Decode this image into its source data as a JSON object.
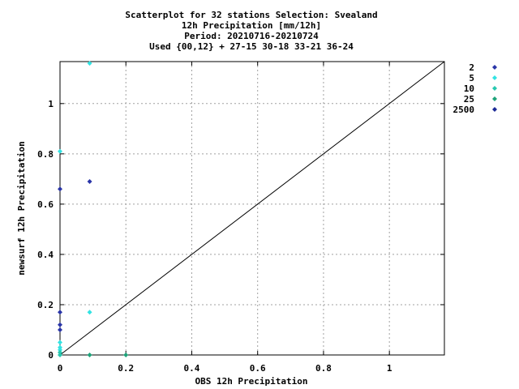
{
  "chart_data": {
    "type": "scatter",
    "title_lines": [
      "Scatterplot for   32 stations Selection: Svealand",
      "12h Precipitation [mm/12h]",
      "Period: 20210716-20210724",
      "Used {00,12} + 27-15 30-18 33-21 36-24"
    ],
    "xlabel": "OBS 12h Precipitation",
    "ylabel": "newsurf 12h Precipitation",
    "xlim": [
      0,
      1.167
    ],
    "ylim": [
      0,
      1.167
    ],
    "x_ticks": [
      0,
      0.2,
      0.4,
      0.6,
      0.8,
      1
    ],
    "y_ticks": [
      0,
      0.2,
      0.4,
      0.6,
      0.8,
      1
    ],
    "x_tick_labels": [
      "0",
      "0.2",
      "0.4",
      "0.6",
      "0.8",
      "1"
    ],
    "y_tick_labels": [
      "0",
      "0.2",
      "0.4",
      "0.6",
      "0.8",
      "1"
    ],
    "grid": true,
    "reference_line": "y=x",
    "legend_position": "right",
    "series": [
      {
        "name": "2",
        "color": "#2a35a8",
        "points": [
          [
            0,
            0.66
          ],
          [
            0,
            0.17
          ],
          [
            0,
            0.12
          ],
          [
            0,
            0.1
          ],
          [
            0.09,
            0.69
          ]
        ]
      },
      {
        "name": "5",
        "color": "#33e3e3",
        "points": [
          [
            0.09,
            1.16
          ],
          [
            0,
            0.81
          ],
          [
            0.09,
            0.17
          ],
          [
            0,
            0.05
          ],
          [
            0,
            0.03
          ],
          [
            0,
            0.02
          ]
        ]
      },
      {
        "name": "10",
        "color": "#28c8b0",
        "points": [
          [
            0,
            0
          ],
          [
            0,
            0.01
          ]
        ]
      },
      {
        "name": "25",
        "color": "#1fa37a",
        "points": [
          [
            0.09,
            0
          ],
          [
            0.2,
            0
          ]
        ]
      },
      {
        "name": "2500",
        "color": "#1c2a96",
        "points": []
      }
    ]
  }
}
